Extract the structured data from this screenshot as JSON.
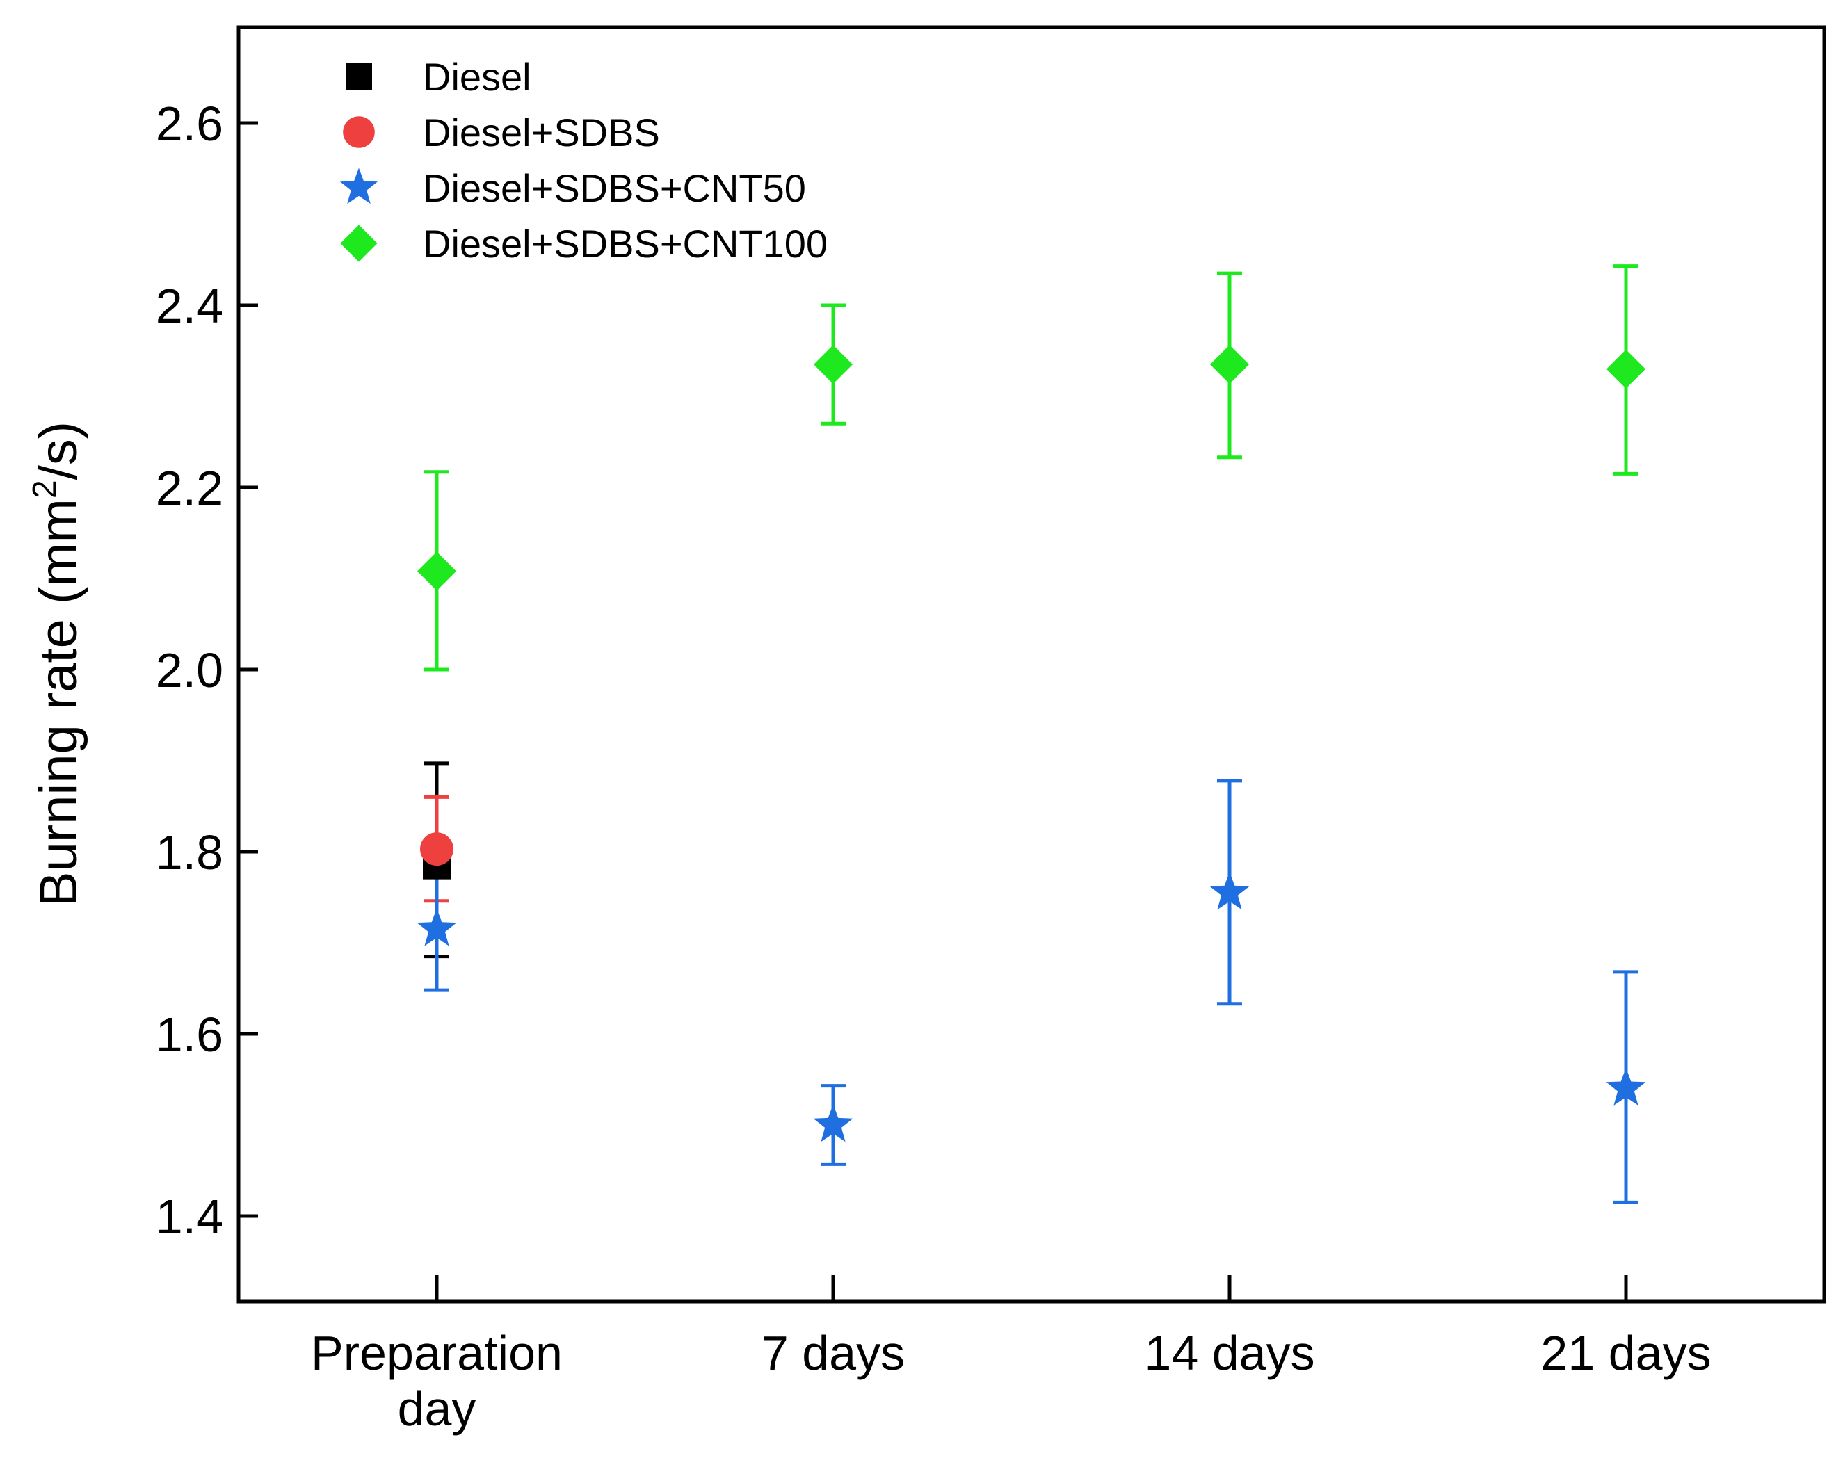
{
  "chart_data": {
    "type": "scatter",
    "title": "",
    "xlabel": "",
    "ylabel": {
      "main": "Burning rate (mm",
      "superscript": "2",
      "tail": "/s)"
    },
    "categories": [
      {
        "lines": [
          "Preparation",
          "day"
        ]
      },
      {
        "lines": [
          "7 days"
        ]
      },
      {
        "lines": [
          "14 days"
        ]
      },
      {
        "lines": [
          "21 days"
        ]
      }
    ],
    "ylim": [
      1.3,
      2.7
    ],
    "yticks": [
      {
        "value": 1.4,
        "label": "1.4"
      },
      {
        "value": 1.6,
        "label": "1.6"
      },
      {
        "value": 1.8,
        "label": "1.8"
      },
      {
        "value": 2.0,
        "label": "2.0"
      },
      {
        "value": 2.2,
        "label": "2.2"
      },
      {
        "value": 2.4,
        "label": "2.4"
      },
      {
        "value": 2.6,
        "label": "2.6"
      }
    ],
    "grid": false,
    "legend_position": "top-left",
    "series": [
      {
        "name": "Diesel",
        "marker": "square",
        "color": "#000000",
        "points": [
          {
            "x": 0,
            "y": 1.785,
            "err_low": 1.685,
            "err_high": 1.897
          }
        ]
      },
      {
        "name": "Diesel+SDBS",
        "marker": "circle",
        "color": "#ef4040",
        "points": [
          {
            "x": 0,
            "y": 1.803,
            "err_low": 1.746,
            "err_high": 1.86
          }
        ]
      },
      {
        "name": "Diesel+SDBS+CNT50",
        "marker": "star",
        "color": "#1f6fe0",
        "points": [
          {
            "x": 0,
            "y": 1.715,
            "err_low": 1.648,
            "err_high": 1.785
          },
          {
            "x": 1,
            "y": 1.5,
            "err_low": 1.457,
            "err_high": 1.543
          },
          {
            "x": 2,
            "y": 1.755,
            "err_low": 1.633,
            "err_high": 1.878
          },
          {
            "x": 3,
            "y": 1.54,
            "err_low": 1.415,
            "err_high": 1.668
          }
        ]
      },
      {
        "name": "Diesel+SDBS+CNT100",
        "marker": "diamond",
        "color": "#1ee81e",
        "points": [
          {
            "x": 0,
            "y": 2.108,
            "err_low": 2.0,
            "err_high": 2.217
          },
          {
            "x": 1,
            "y": 2.335,
            "err_low": 2.27,
            "err_high": 2.4
          },
          {
            "x": 2,
            "y": 2.335,
            "err_low": 2.233,
            "err_high": 2.435
          },
          {
            "x": 3,
            "y": 2.33,
            "err_low": 2.215,
            "err_high": 2.443
          }
        ]
      }
    ]
  }
}
